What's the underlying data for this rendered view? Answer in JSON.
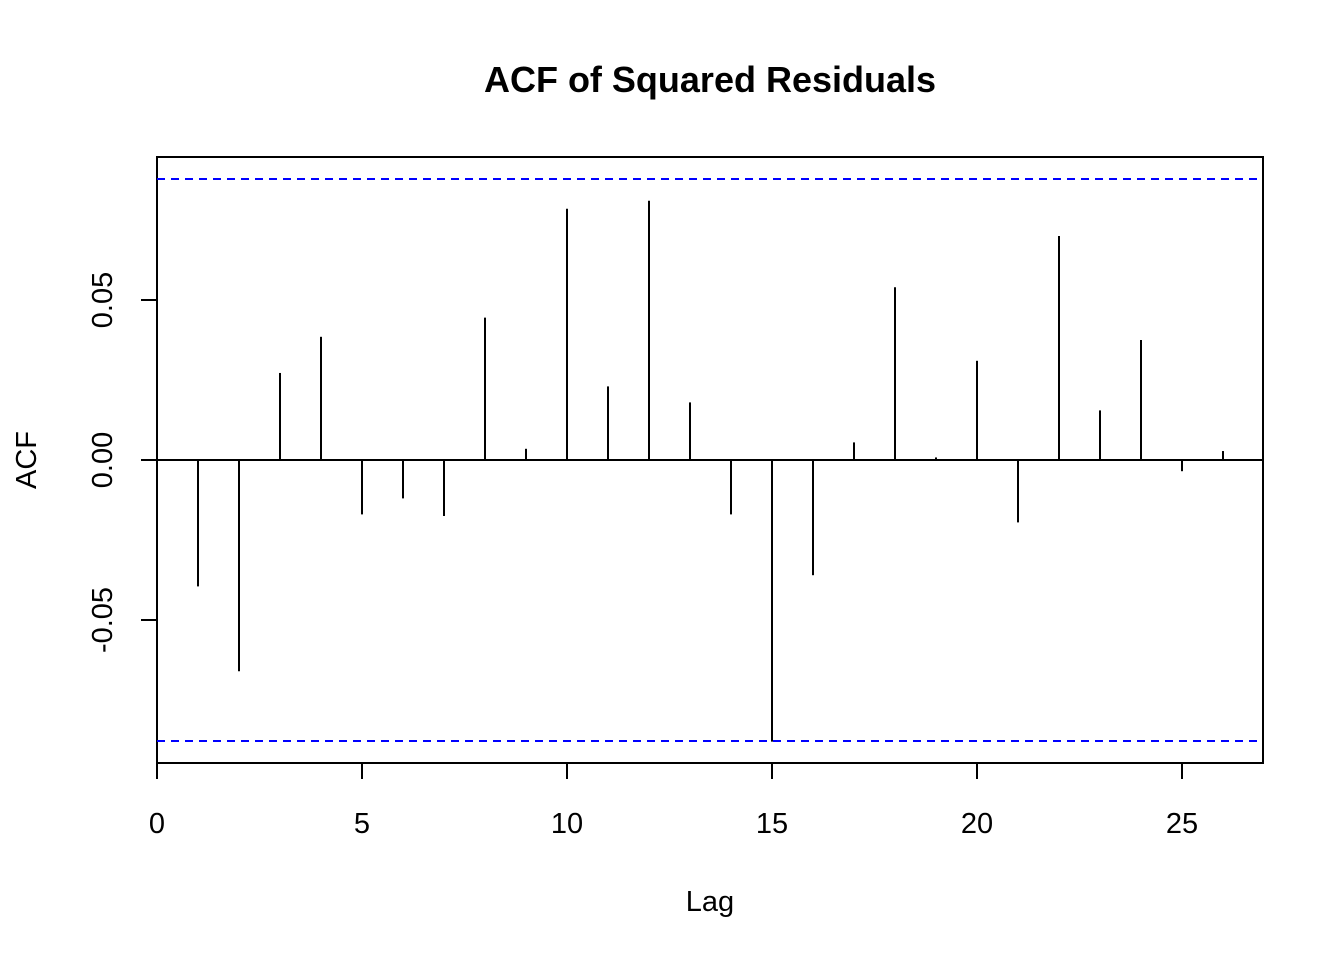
{
  "chart_data": {
    "type": "bar",
    "title": "ACF of Squared Residuals",
    "xlabel": "Lag",
    "ylabel": "ACF",
    "xlim": [
      0,
      27
    ],
    "ylim": [
      -0.095,
      0.095
    ],
    "x_ticks": [
      0,
      5,
      10,
      15,
      20,
      25
    ],
    "y_ticks": [
      -0.05,
      0.0,
      0.05
    ],
    "x_tick_labels": [
      "0",
      "5",
      "10",
      "15",
      "20",
      "25"
    ],
    "y_tick_labels": [
      "-0.05",
      "0.00",
      "0.05"
    ],
    "confidence_bounds": [
      0.0878,
      -0.0878
    ],
    "confidence_color": "#0000ff",
    "lags": [
      1,
      2,
      3,
      4,
      5,
      6,
      7,
      8,
      9,
      10,
      11,
      12,
      13,
      14,
      15,
      16,
      17,
      18,
      19,
      20,
      21,
      22,
      23,
      24,
      25,
      26
    ],
    "values": [
      -0.0395,
      -0.066,
      0.0272,
      0.0385,
      -0.017,
      -0.012,
      -0.0175,
      0.0445,
      0.0035,
      0.0785,
      0.023,
      0.081,
      0.018,
      -0.017,
      -0.088,
      -0.036,
      0.0055,
      0.054,
      0.0008,
      0.031,
      -0.0195,
      0.07,
      0.0155,
      0.0375,
      -0.0035,
      0.0028
    ],
    "grid": false
  }
}
